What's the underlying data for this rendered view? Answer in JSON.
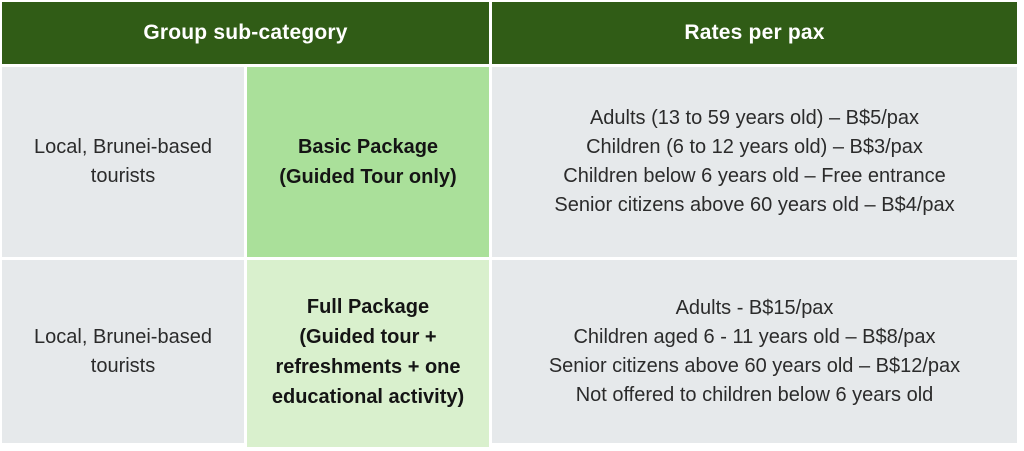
{
  "colors": {
    "page_bg": "#FFFFFF",
    "header_bg": "#305C16",
    "header_text": "#FFFFFF",
    "cell_bg": "#E6E9EB",
    "package_basic_bg": "#AAE09A",
    "package_full_bg": "#D9F0CD",
    "body_text": "#2B2B2B",
    "bold_text": "#141414"
  },
  "table": {
    "header": {
      "group_sub_category": "Group sub-category",
      "rates_per_pax": "Rates per pax"
    },
    "rows": [
      {
        "category": "Local, Brunei-based tourists",
        "package_name": "Basic Package",
        "package_detail": "(Guided Tour only)",
        "rates": [
          "Adults (13 to 59 years old) – B$5/pax",
          "Children (6 to 12 years old) – B$3/pax",
          "Children below 6 years old – Free entrance",
          "Senior citizens above 60 years old – B$4/pax"
        ]
      },
      {
        "category": "Local, Brunei-based tourists",
        "package_name": "Full Package",
        "package_detail": "(Guided tour + refreshments + one educational activity)",
        "rates": [
          "Adults - B$15/pax",
          "Children aged 6 - 11 years old – B$8/pax",
          "Senior citizens above 60 years old – B$12/pax",
          "Not offered to children below 6 years old"
        ]
      }
    ]
  }
}
